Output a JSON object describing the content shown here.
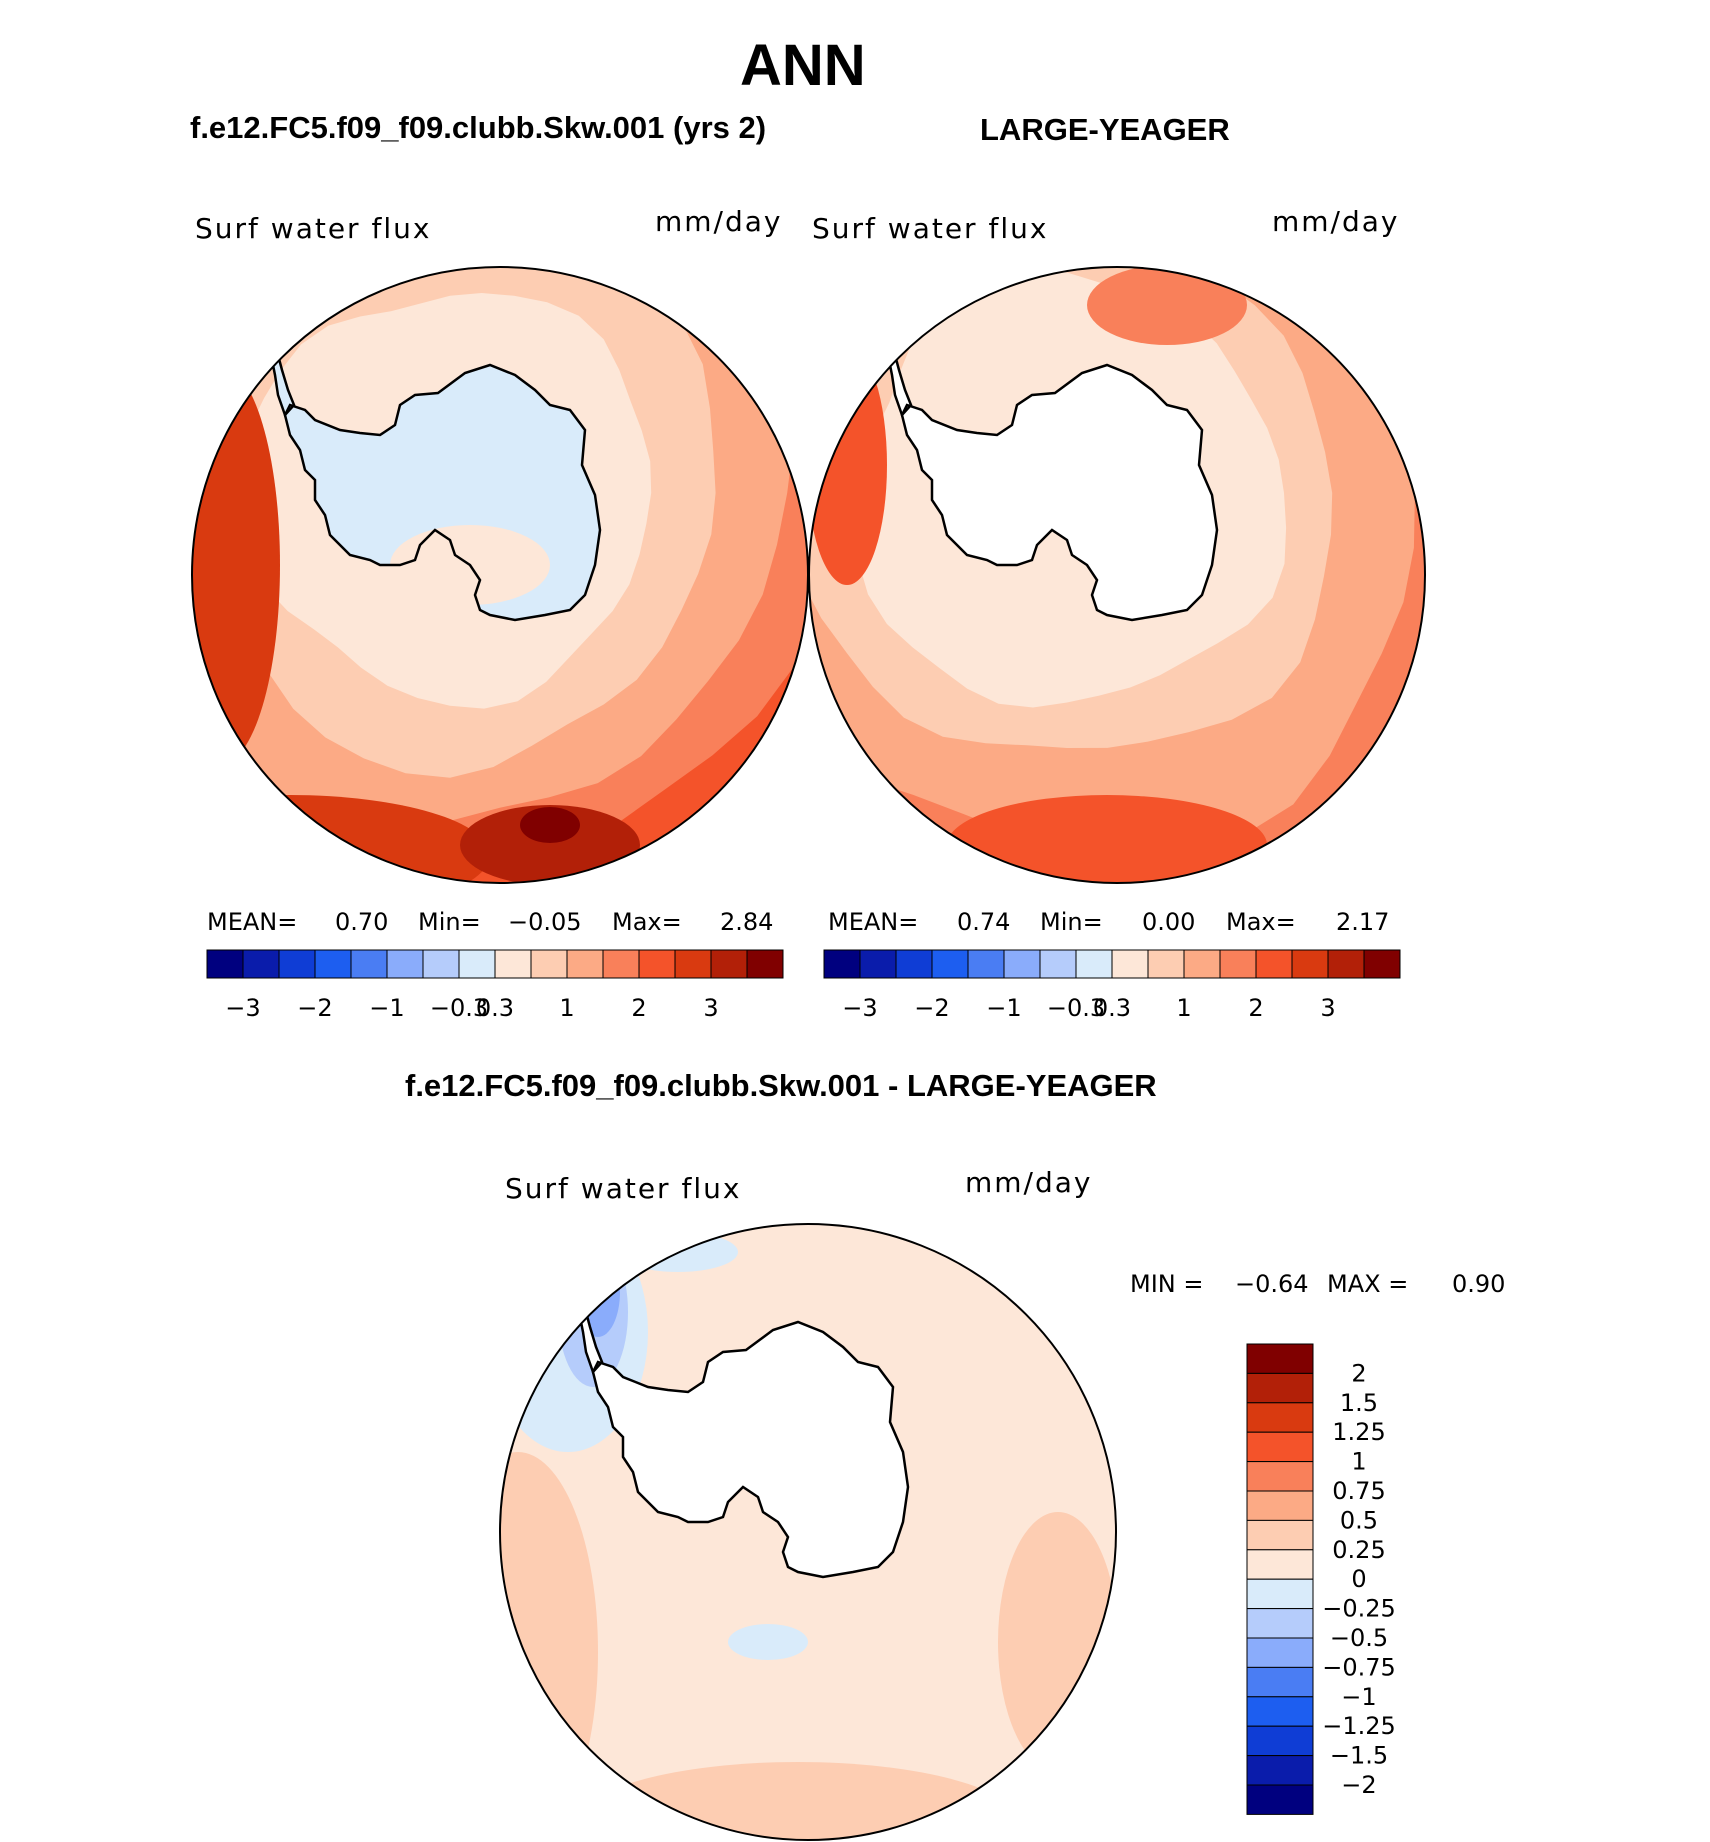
{
  "header": {
    "title": "ANN",
    "left_title": "f.e12.FC5.f09_f09.clubb.Skw.001 (yrs 2)",
    "right_title": "LARGE-YEAGER",
    "diff_title": "f.e12.FC5.f09_f09.clubb.Skw.001 - LARGE-YEAGER"
  },
  "colors": {
    "abs_scale": [
      "#00007f",
      "#0a1cab",
      "#0f3dd5",
      "#1d5ef0",
      "#4a7df3",
      "#8aacfb",
      "#b5ccfb",
      "#d9ebfa",
      "#fde7d8",
      "#fdcdb2",
      "#fcaa85",
      "#f9805a",
      "#f4532a",
      "#d93a10",
      "#b22008",
      "#800000"
    ],
    "diff_scale": [
      "#800000",
      "#b22008",
      "#d93a10",
      "#f4532a",
      "#f9805a",
      "#fcaa85",
      "#fdcdb2",
      "#fde7d8",
      "#d9ebfa",
      "#b5ccfb",
      "#8aacfb",
      "#4a7df3",
      "#1d5ef0",
      "#0f3dd5",
      "#0a1cab",
      "#00007f"
    ]
  },
  "chart_data": [
    {
      "type": "heatmap",
      "projection": "south-polar",
      "title": "f.e12.FC5.f09_f09.clubb.Skw.001 (yrs 2)",
      "variable": "Surf water flux",
      "units": "mm/day",
      "stats": {
        "mean_label": "MEAN=",
        "mean": "0.70",
        "min_label": "Min=",
        "min": "-0.05",
        "max_label": "Max=",
        "max": "2.84"
      },
      "colorbar_ticks": [
        "-3",
        "-2",
        "-1",
        "-0.3",
        "0.3",
        "1",
        "2",
        "3"
      ]
    },
    {
      "type": "heatmap",
      "projection": "south-polar",
      "title": "LARGE-YEAGER",
      "variable": "Surf water flux",
      "units": "mm/day",
      "stats": {
        "mean_label": "MEAN=",
        "mean": "0.74",
        "min_label": "Min=",
        "min": "0.00",
        "max_label": "Max=",
        "max": "2.17"
      },
      "colorbar_ticks": [
        "-3",
        "-2",
        "-1",
        "-0.3",
        "0.3",
        "1",
        "2",
        "3"
      ]
    },
    {
      "type": "heatmap",
      "projection": "south-polar",
      "title": "f.e12.FC5.f09_f09.clubb.Skw.001 - LARGE-YEAGER",
      "variable": "Surf water flux",
      "units": "mm/day",
      "stats": {
        "min_label": "MIN =",
        "min": "-0.64",
        "max_label": "MAX =",
        "max": "0.90"
      },
      "colorbar_ticks": [
        "2",
        "1.5",
        "1.25",
        "1",
        "0.75",
        "0.5",
        "0.25",
        "0",
        "-0.25",
        "-0.5",
        "-0.75",
        "-1",
        "-1.25",
        "-1.5",
        "-2"
      ]
    }
  ]
}
